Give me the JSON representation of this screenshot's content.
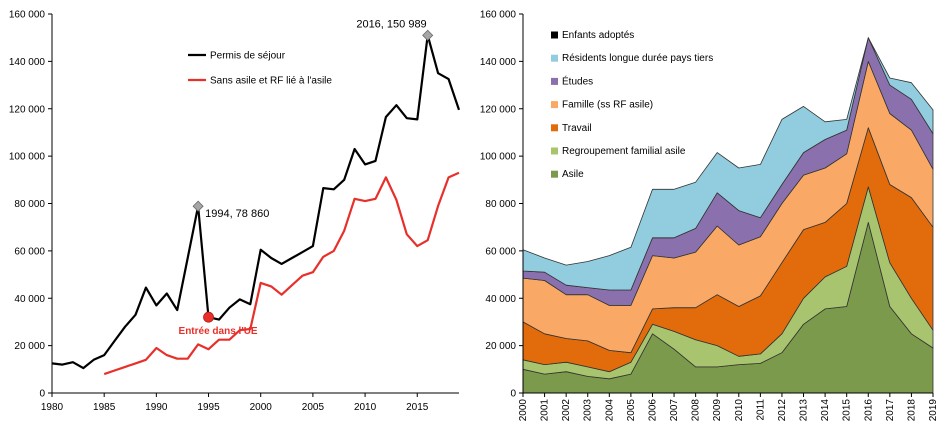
{
  "chart_data": [
    {
      "type": "line",
      "x": [
        1980,
        1981,
        1982,
        1983,
        1984,
        1985,
        1986,
        1987,
        1988,
        1989,
        1990,
        1991,
        1992,
        1993,
        1994,
        1995,
        1996,
        1997,
        1998,
        1999,
        2000,
        2001,
        2002,
        2003,
        2004,
        2005,
        2006,
        2007,
        2008,
        2009,
        2010,
        2011,
        2012,
        2013,
        2014,
        2015,
        2016,
        2017,
        2018,
        2019
      ],
      "xticks": [
        "1980",
        "1985",
        "1990",
        "1995",
        "2000",
        "2005",
        "2010",
        "2015"
      ],
      "yticks": [
        "0",
        "20 000",
        "40 000",
        "60 000",
        "80 000",
        "100 000",
        "120 000",
        "140 000",
        "160 000"
      ],
      "ylim": [
        0,
        160000
      ],
      "xlim": [
        1980,
        2019
      ],
      "series": [
        {
          "name": "Permis de séjour",
          "color": "#000000",
          "values": [
            12500,
            12000,
            13000,
            10500,
            14000,
            16000,
            22000,
            28000,
            33000,
            44500,
            37000,
            42000,
            35000,
            57000,
            78860,
            32000,
            31000,
            36000,
            39500,
            37500,
            60500,
            57000,
            54500,
            57000,
            59500,
            62000,
            86500,
            86000,
            90000,
            103000,
            96500,
            98000,
            116500,
            121500,
            116000,
            115500,
            150989,
            135000,
            132500,
            119500
          ]
        },
        {
          "name": "Sans asile et RF lié à l'asile",
          "color": "#e8302a",
          "values": [
            null,
            null,
            null,
            null,
            null,
            8000,
            9500,
            11000,
            12500,
            14000,
            19000,
            16000,
            14500,
            14500,
            20500,
            18500,
            22500,
            22500,
            26500,
            27000,
            46500,
            45000,
            41500,
            45500,
            49500,
            51000,
            57500,
            60000,
            68500,
            82000,
            81000,
            82000,
            91000,
            81500,
            67000,
            62000,
            64500,
            79000,
            91000,
            93000
          ]
        }
      ],
      "annotations": [
        {
          "label": "1994, 78 860",
          "x": 1994,
          "y": 78860
        },
        {
          "label": "2016, 150 989",
          "x": 2016,
          "y": 150989
        },
        {
          "label": "Entrée dans l'UE",
          "x": 1995,
          "y": 32000
        }
      ],
      "legend_position": "top-center"
    },
    {
      "type": "area",
      "stacked": true,
      "categories": [
        "2000",
        "2001",
        "2002",
        "2003",
        "2004",
        "2005",
        "2006",
        "2007",
        "2008",
        "2009",
        "2010",
        "2011",
        "2012",
        "2013",
        "2014",
        "2015",
        "2016",
        "2017",
        "2018",
        "2019"
      ],
      "yticks": [
        "0",
        "20 000",
        "40 000",
        "60 000",
        "80 000",
        "100 000",
        "120 000",
        "140 000",
        "160 000"
      ],
      "ylim": [
        0,
        160000
      ],
      "series": [
        {
          "name": "Asile",
          "color": "#7b9a4c",
          "values": [
            10000,
            8000,
            9000,
            7000,
            6000,
            8000,
            25000,
            18500,
            11000,
            11000,
            12000,
            12500,
            17000,
            29000,
            35500,
            36500,
            72000,
            36500,
            25000,
            19000
          ]
        },
        {
          "name": "Regroupement familial asile",
          "color": "#a8c46e",
          "values": [
            4000,
            4000,
            4000,
            4000,
            3000,
            5000,
            4000,
            7500,
            11500,
            9000,
            3500,
            4000,
            8000,
            11000,
            13500,
            17000,
            15000,
            18500,
            15000,
            7500
          ]
        },
        {
          "name": "Travail",
          "color": "#e26b0c",
          "values": [
            16000,
            13000,
            10000,
            11000,
            9000,
            4000,
            6500,
            10000,
            13500,
            21500,
            21000,
            24500,
            30000,
            29000,
            23000,
            26500,
            25000,
            33000,
            42500,
            43500
          ]
        },
        {
          "name": "Famille (ss RF asile)",
          "color": "#f9a965",
          "values": [
            18500,
            22500,
            18500,
            19500,
            19000,
            20000,
            22500,
            21000,
            23500,
            29000,
            26000,
            25000,
            25000,
            23000,
            23000,
            21000,
            28000,
            30000,
            28500,
            24500
          ]
        },
        {
          "name": "Études",
          "color": "#8a71ae",
          "values": [
            3000,
            3500,
            4000,
            3000,
            6500,
            6500,
            7500,
            8500,
            10000,
            14000,
            14500,
            8000,
            8000,
            9500,
            12000,
            10000,
            10000,
            12000,
            13000,
            15000
          ]
        },
        {
          "name": "Résidents longue durée pays tiers",
          "color": "#91cddf",
          "values": [
            9000,
            6000,
            8500,
            11000,
            14500,
            18000,
            20500,
            20500,
            19500,
            17000,
            18000,
            22500,
            27500,
            19500,
            7500,
            4500,
            0,
            3000,
            7000,
            10000
          ]
        },
        {
          "name": "Enfants adoptés",
          "color": "#000000",
          "values": [
            0,
            0,
            0,
            0,
            0,
            0,
            0,
            0,
            0,
            0,
            0,
            0,
            0,
            0,
            0,
            0,
            0,
            0,
            0,
            0
          ]
        }
      ],
      "legend_position": "top-left"
    }
  ]
}
